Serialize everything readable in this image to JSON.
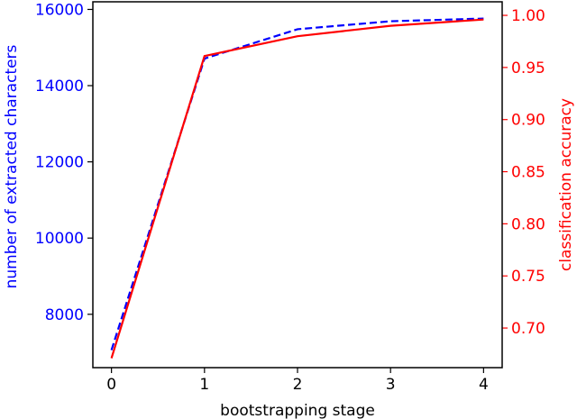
{
  "chart_data": {
    "type": "line",
    "title": "",
    "xlabel": "bootstrapping stage",
    "ylabel_left": "number of extracted characters",
    "ylabel_right": "classification accuracy",
    "x": [
      0,
      1,
      2,
      3,
      4
    ],
    "x_ticks": [
      "0",
      "1",
      "2",
      "3",
      "4"
    ],
    "y_left_ticks": [
      "8000",
      "10000",
      "12000",
      "14000",
      "16000"
    ],
    "y_right_ticks": [
      "0.70",
      "0.75",
      "0.80",
      "0.85",
      "0.90",
      "0.95",
      "1.00"
    ],
    "ylim_left": [
      6600,
      16200
    ],
    "ylim_right": [
      0.662,
      1.013
    ],
    "grid": false,
    "legend": null,
    "series": [
      {
        "name": "number of extracted characters",
        "axis": "left",
        "color": "#0000ff",
        "style": "dashed",
        "values": [
          7060,
          14710,
          15480,
          15690,
          15760
        ]
      },
      {
        "name": "classification accuracy",
        "axis": "right",
        "color": "#ff0000",
        "style": "solid",
        "values": [
          0.671,
          0.961,
          0.98,
          0.99,
          0.996
        ]
      }
    ]
  },
  "colors": {
    "left_axis": "#0000ff",
    "right_axis": "#ff0000",
    "x_axis": "#000000"
  }
}
